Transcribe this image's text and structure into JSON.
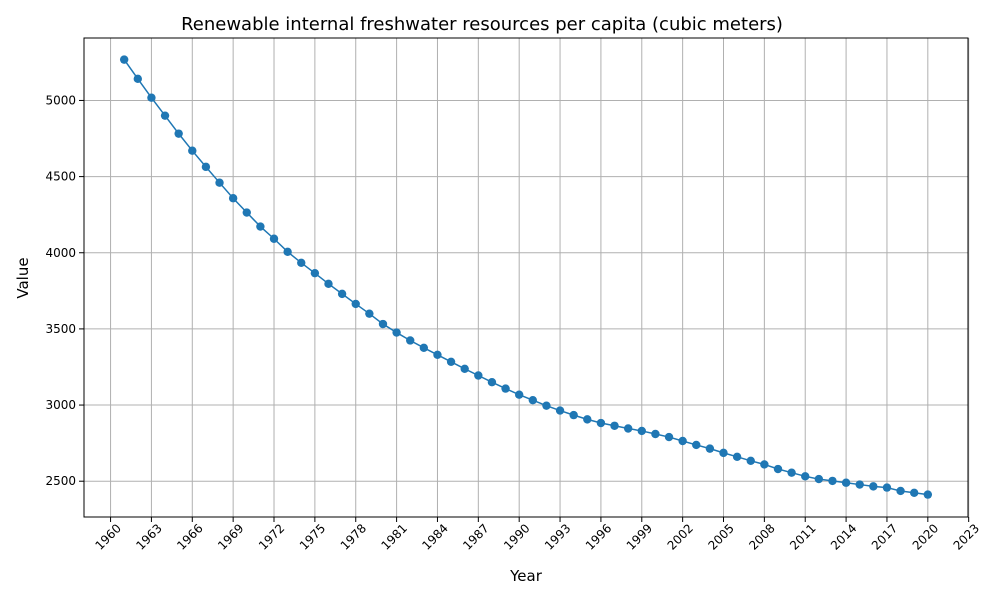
{
  "chart_data": {
    "type": "line",
    "title": "Renewable internal freshwater resources per capita (cubic meters)",
    "xlabel": "Year",
    "ylabel": "Value",
    "xlim": [
      1958.05,
      2022.95
    ],
    "ylim": [
      2265,
      5410
    ],
    "x_ticks": [
      1960,
      1963,
      1966,
      1969,
      1972,
      1975,
      1978,
      1981,
      1984,
      1987,
      1990,
      1993,
      1996,
      1999,
      2002,
      2005,
      2008,
      2011,
      2014,
      2017,
      2020,
      2023
    ],
    "y_ticks": [
      2500,
      3000,
      3500,
      4000,
      4500,
      5000
    ],
    "grid": true,
    "line_color": "#1f77b4",
    "series": [
      {
        "name": "Value",
        "x": [
          1961,
          1962,
          1963,
          1964,
          1965,
          1966,
          1967,
          1968,
          1969,
          1970,
          1971,
          1972,
          1973,
          1974,
          1975,
          1976,
          1977,
          1978,
          1979,
          1980,
          1981,
          1982,
          1983,
          1984,
          1985,
          1986,
          1987,
          1988,
          1989,
          1990,
          1991,
          1992,
          1993,
          1994,
          1995,
          1996,
          1997,
          1998,
          1999,
          2000,
          2001,
          2002,
          2003,
          2004,
          2005,
          2006,
          2007,
          2008,
          2009,
          2010,
          2011,
          2012,
          2013,
          2014,
          2015,
          2016,
          2017,
          2018,
          2019,
          2020
        ],
        "values": [
          5268,
          5142,
          5018,
          4900,
          4782,
          4670,
          4564,
          4460,
          4358,
          4264,
          4172,
          4092,
          4006,
          3934,
          3866,
          3796,
          3730,
          3664,
          3600,
          3532,
          3476,
          3424,
          3376,
          3330,
          3284,
          3238,
          3194,
          3150,
          3108,
          3068,
          3032,
          2996,
          2964,
          2934,
          2906,
          2882,
          2864,
          2846,
          2830,
          2810,
          2790,
          2764,
          2738,
          2714,
          2686,
          2660,
          2634,
          2610,
          2580,
          2556,
          2532,
          2514,
          2502,
          2490,
          2478,
          2466,
          2458,
          2436,
          2424,
          2412
        ]
      }
    ]
  }
}
